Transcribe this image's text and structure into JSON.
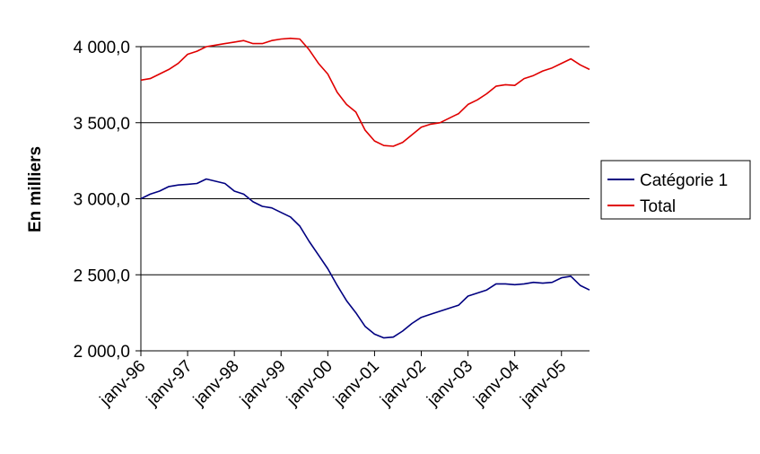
{
  "chart_data": {
    "type": "line",
    "title": "",
    "xlabel": "",
    "ylabel": "En milliers",
    "ylim": [
      2000,
      4000
    ],
    "yticks": [
      {
        "value": 2000,
        "label": "2 000,0"
      },
      {
        "value": 2500,
        "label": "2 500,0"
      },
      {
        "value": 3000,
        "label": "3 000,0"
      },
      {
        "value": 3500,
        "label": "3 500,0"
      },
      {
        "value": 4000,
        "label": "4 000,0"
      }
    ],
    "xticks": [
      {
        "value": 1996.0,
        "label": "janv-96"
      },
      {
        "value": 1997.0,
        "label": "janv-97"
      },
      {
        "value": 1998.0,
        "label": "janv-98"
      },
      {
        "value": 1999.0,
        "label": "janv-99"
      },
      {
        "value": 2000.0,
        "label": "janv-00"
      },
      {
        "value": 2001.0,
        "label": "janv-01"
      },
      {
        "value": 2002.0,
        "label": "janv-02"
      },
      {
        "value": 2003.0,
        "label": "janv-03"
      },
      {
        "value": 2004.0,
        "label": "janv-04"
      },
      {
        "value": 2005.0,
        "label": "janv-05"
      }
    ],
    "xlim": [
      1996.0,
      2005.6
    ],
    "grid": true,
    "legend_position": "right",
    "series": [
      {
        "name": "Catégorie 1",
        "color": "#000080",
        "points": [
          [
            1996.0,
            3000
          ],
          [
            1996.2,
            3030
          ],
          [
            1996.4,
            3050
          ],
          [
            1996.6,
            3080
          ],
          [
            1996.8,
            3090
          ],
          [
            1997.0,
            3095
          ],
          [
            1997.2,
            3100
          ],
          [
            1997.4,
            3130
          ],
          [
            1997.6,
            3115
          ],
          [
            1997.8,
            3100
          ],
          [
            1998.0,
            3050
          ],
          [
            1998.2,
            3030
          ],
          [
            1998.4,
            2980
          ],
          [
            1998.6,
            2950
          ],
          [
            1998.8,
            2940
          ],
          [
            1999.0,
            2910
          ],
          [
            1999.2,
            2880
          ],
          [
            1999.4,
            2820
          ],
          [
            1999.6,
            2720
          ],
          [
            1999.8,
            2630
          ],
          [
            2000.0,
            2540
          ],
          [
            2000.2,
            2430
          ],
          [
            2000.4,
            2330
          ],
          [
            2000.6,
            2250
          ],
          [
            2000.8,
            2160
          ],
          [
            2001.0,
            2110
          ],
          [
            2001.2,
            2085
          ],
          [
            2001.4,
            2090
          ],
          [
            2001.6,
            2130
          ],
          [
            2001.8,
            2180
          ],
          [
            2002.0,
            2220
          ],
          [
            2002.2,
            2240
          ],
          [
            2002.4,
            2260
          ],
          [
            2002.6,
            2280
          ],
          [
            2002.8,
            2300
          ],
          [
            2003.0,
            2360
          ],
          [
            2003.2,
            2380
          ],
          [
            2003.4,
            2400
          ],
          [
            2003.6,
            2440
          ],
          [
            2003.8,
            2440
          ],
          [
            2004.0,
            2435
          ],
          [
            2004.2,
            2440
          ],
          [
            2004.4,
            2450
          ],
          [
            2004.6,
            2445
          ],
          [
            2004.8,
            2450
          ],
          [
            2005.0,
            2480
          ],
          [
            2005.2,
            2490
          ],
          [
            2005.4,
            2430
          ],
          [
            2005.6,
            2400
          ]
        ]
      },
      {
        "name": "Total",
        "color": "#e00000",
        "points": [
          [
            1996.0,
            3780
          ],
          [
            1996.2,
            3790
          ],
          [
            1996.4,
            3820
          ],
          [
            1996.6,
            3850
          ],
          [
            1996.8,
            3890
          ],
          [
            1997.0,
            3950
          ],
          [
            1997.2,
            3970
          ],
          [
            1997.4,
            4000
          ],
          [
            1997.6,
            4010
          ],
          [
            1997.8,
            4020
          ],
          [
            1998.0,
            4030
          ],
          [
            1998.2,
            4040
          ],
          [
            1998.4,
            4020
          ],
          [
            1998.6,
            4020
          ],
          [
            1998.8,
            4040
          ],
          [
            1999.0,
            4050
          ],
          [
            1999.2,
            4055
          ],
          [
            1999.4,
            4050
          ],
          [
            1999.6,
            3980
          ],
          [
            1999.8,
            3890
          ],
          [
            2000.0,
            3820
          ],
          [
            2000.2,
            3700
          ],
          [
            2000.4,
            3620
          ],
          [
            2000.6,
            3570
          ],
          [
            2000.8,
            3450
          ],
          [
            2001.0,
            3380
          ],
          [
            2001.2,
            3350
          ],
          [
            2001.4,
            3345
          ],
          [
            2001.6,
            3370
          ],
          [
            2001.8,
            3420
          ],
          [
            2002.0,
            3470
          ],
          [
            2002.2,
            3490
          ],
          [
            2002.4,
            3500
          ],
          [
            2002.6,
            3530
          ],
          [
            2002.8,
            3560
          ],
          [
            2003.0,
            3620
          ],
          [
            2003.2,
            3650
          ],
          [
            2003.4,
            3690
          ],
          [
            2003.6,
            3740
          ],
          [
            2003.8,
            3750
          ],
          [
            2004.0,
            3745
          ],
          [
            2004.2,
            3790
          ],
          [
            2004.4,
            3810
          ],
          [
            2004.6,
            3840
          ],
          [
            2004.8,
            3860
          ],
          [
            2005.0,
            3890
          ],
          [
            2005.2,
            3920
          ],
          [
            2005.4,
            3880
          ],
          [
            2005.6,
            3850
          ]
        ]
      }
    ]
  }
}
